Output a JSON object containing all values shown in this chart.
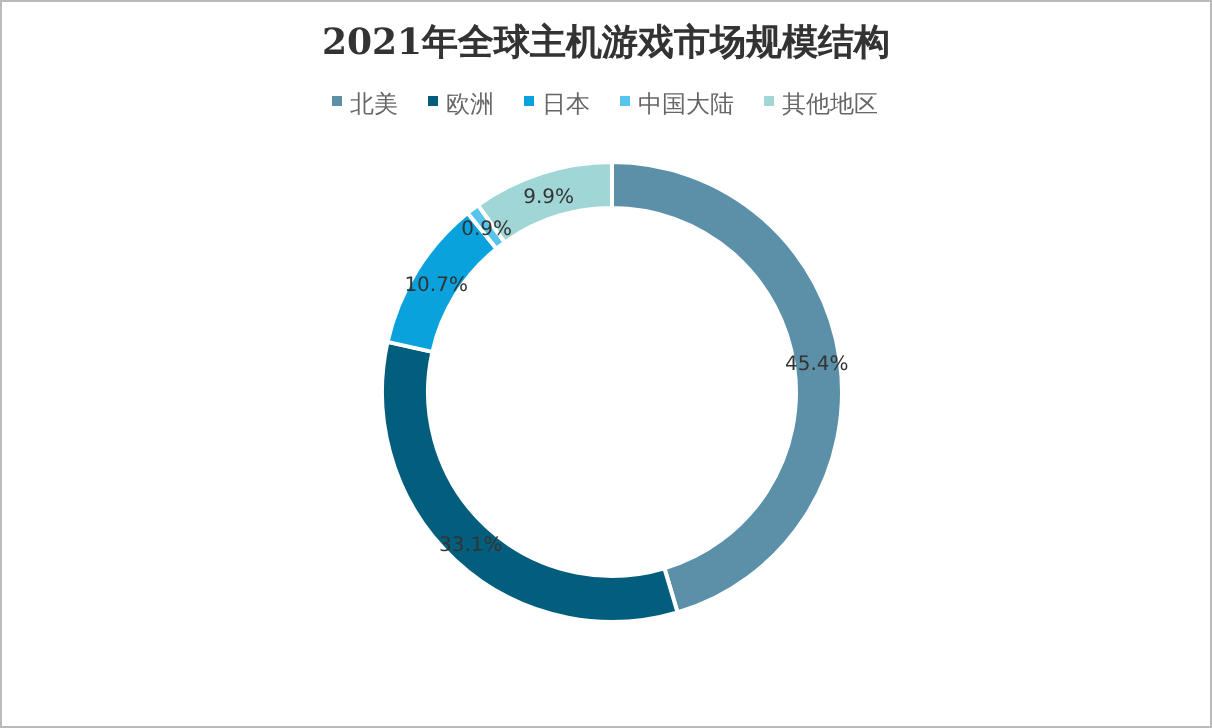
{
  "chart_data": {
    "type": "donut",
    "title": "2021年全球主机游戏市场规模结构",
    "legend": "top",
    "categories": [
      "北美",
      "欧洲",
      "日本",
      "中国大陆",
      "其他地区"
    ],
    "values": [
      45.4,
      33.1,
      10.7,
      0.9,
      9.9
    ],
    "value_labels": [
      "45.4%",
      "33.1%",
      "10.7%",
      "0.9%",
      "9.9%"
    ],
    "colors": [
      "#5b90a8",
      "#035e7e",
      "#0aa2dc",
      "#56c4ec",
      "#a0d6d6"
    ]
  }
}
